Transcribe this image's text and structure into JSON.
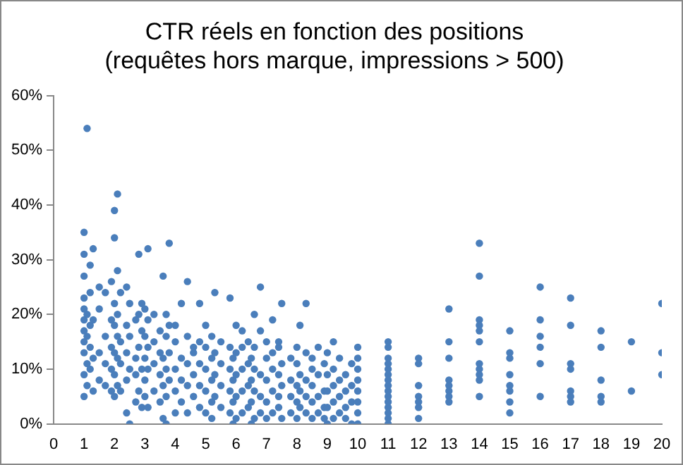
{
  "chart_data": {
    "type": "scatter",
    "title": "CTR réels en fonction des positions\n(requêtes hors marque, impressions > 500)",
    "marker": "circle",
    "xlim": [
      0,
      20
    ],
    "xticks": [
      0,
      1,
      2,
      3,
      4,
      5,
      6,
      7,
      8,
      9,
      10,
      11,
      12,
      13,
      14,
      15,
      16,
      17,
      18,
      19,
      20
    ],
    "ylim": [
      0,
      60
    ],
    "yticks": [
      {
        "value": 0,
        "label": "0%"
      },
      {
        "value": 10,
        "label": "10%"
      },
      {
        "value": 20,
        "label": "20%"
      },
      {
        "value": 30,
        "label": "30%"
      },
      {
        "value": 40,
        "label": "40%"
      },
      {
        "value": 50,
        "label": "50%"
      },
      {
        "value": 60,
        "label": "60%"
      }
    ],
    "series": [
      {
        "color": "#4a7ebb",
        "x": [
          1,
          1,
          1,
          1,
          1,
          1,
          1,
          1,
          1,
          1,
          1,
          1.1,
          1.1,
          1.1,
          1.1,
          1.1,
          1.2,
          1.2,
          1.2,
          1.2,
          1.2,
          1.3,
          1.3,
          1.3,
          1.3,
          1.5,
          1.5,
          1.5,
          1.5,
          1.7,
          1.7,
          1.7,
          1.7,
          1.9,
          1.9,
          1.9,
          1.9,
          1.9,
          2,
          2,
          2,
          2,
          2,
          2,
          2,
          2.1,
          2.1,
          2.1,
          2.1,
          2.1,
          2.1,
          2.2,
          2.2,
          2.2,
          2.2,
          2.4,
          2.4,
          2.4,
          2.4,
          2.4,
          2.5,
          2.5,
          2.5,
          2.5,
          2.7,
          2.7,
          2.7,
          2.7,
          2.8,
          2.8,
          2.8,
          2.8,
          2.9,
          2.9,
          2.9,
          2.9,
          3,
          3,
          3,
          3,
          3,
          3.1,
          3.1,
          3.1,
          3.1,
          3.1,
          3.3,
          3.3,
          3.3,
          3.3,
          3.5,
          3.5,
          3.5,
          3.5,
          3.6,
          3.6,
          3.6,
          3.6,
          3.7,
          3.7,
          3.7,
          3.7,
          3.7,
          3.8,
          3.8,
          3.8,
          3.8,
          4,
          4,
          4,
          4,
          4,
          4.2,
          4.2,
          4.2,
          4.2,
          4.4,
          4.4,
          4.4,
          4.4,
          4.4,
          4.6,
          4.6,
          4.6,
          4.6,
          4.8,
          4.8,
          4.8,
          4.8,
          4.8,
          5,
          5,
          5,
          5,
          5,
          5.2,
          5.2,
          5.2,
          5.2,
          5.2,
          5.3,
          5.3,
          5.3,
          5.3,
          5.5,
          5.5,
          5.5,
          5.5,
          5.8,
          5.8,
          5.8,
          5.8,
          5.8,
          5.9,
          5.9,
          5.9,
          5.9,
          6,
          6,
          6,
          6,
          6,
          6.2,
          6.2,
          6.2,
          6.2,
          6.2,
          6.4,
          6.4,
          6.4,
          6.4,
          6.5,
          6.5,
          6.5,
          6.5,
          6.6,
          6.6,
          6.6,
          6.6,
          6.6,
          6.8,
          6.8,
          6.8,
          6.8,
          6.8,
          7,
          7,
          7,
          7,
          7,
          7.2,
          7.2,
          7.2,
          7.2,
          7.2,
          7.4,
          7.4,
          7.4,
          7.4,
          7.4,
          7.5,
          7.5,
          7.5,
          7.5,
          7.8,
          7.8,
          7.8,
          7.8,
          8,
          8,
          8,
          8,
          8,
          8.1,
          8.1,
          8.1,
          8.1,
          8.3,
          8.3,
          8.3,
          8.3,
          8.3,
          8.5,
          8.5,
          8.5,
          8.5,
          8.5,
          8.7,
          8.7,
          8.7,
          8.7,
          8.9,
          8.9,
          8.9,
          8.9,
          9,
          9,
          9,
          9,
          9,
          9.2,
          9.2,
          9.2,
          9.2,
          9.2,
          9.4,
          9.4,
          9.4,
          9.4,
          9.6,
          9.6,
          9.6,
          9.6,
          9.8,
          9.8,
          9.8,
          9.8,
          10,
          10,
          10,
          10,
          10,
          10,
          10,
          10,
          11,
          11,
          11,
          11,
          11,
          11,
          11,
          11,
          11,
          11,
          11,
          11,
          11,
          11,
          11,
          12,
          12,
          12,
          12,
          12,
          12,
          12,
          13,
          13,
          13,
          13,
          13,
          13,
          13,
          13,
          14,
          14,
          14,
          14,
          14,
          14,
          14,
          14,
          14,
          14,
          14,
          15,
          15,
          15,
          15,
          15,
          15,
          15,
          15,
          16,
          16,
          16,
          16,
          16,
          16,
          17,
          17,
          17,
          17,
          17,
          17,
          17,
          18,
          18,
          18,
          18,
          18,
          19,
          19,
          20,
          20,
          20
        ],
        "values": [
          5,
          9,
          13,
          15,
          17,
          19,
          21,
          23,
          27,
          31,
          35,
          54,
          7,
          11,
          16,
          20,
          29,
          10,
          14,
          18,
          24,
          32,
          6,
          12,
          19,
          8,
          13,
          21,
          25,
          7,
          11,
          16,
          24,
          6,
          10,
          14,
          19,
          26,
          5,
          9,
          13,
          18,
          22,
          34,
          39,
          42,
          7,
          12,
          16,
          20,
          28,
          6,
          11,
          15,
          24,
          2,
          8,
          13,
          18,
          25,
          0,
          10,
          16,
          22,
          4,
          9,
          12,
          19,
          31,
          6,
          14,
          20,
          3,
          10,
          17,
          22,
          5,
          8,
          12,
          16,
          21,
          32,
          3,
          10,
          14,
          19,
          6,
          11,
          15,
          20,
          4,
          9,
          13,
          17,
          27,
          1,
          7,
          12,
          0,
          5,
          10,
          16,
          20,
          33,
          8,
          13,
          18,
          2,
          6,
          10,
          15,
          18,
          4,
          8,
          12,
          22,
          26,
          2,
          7,
          11,
          16,
          5,
          9,
          13,
          14,
          3,
          7,
          11,
          22,
          15,
          2,
          6,
          10,
          14,
          18,
          1,
          4,
          8,
          12,
          16,
          24,
          5,
          9,
          13,
          3,
          7,
          11,
          15,
          23,
          2,
          6,
          10,
          14,
          0,
          4,
          8,
          12,
          1,
          5,
          9,
          13,
          18,
          2,
          6,
          10,
          14,
          17,
          3,
          7,
          11,
          15,
          0,
          4,
          8,
          12,
          20,
          1,
          6,
          10,
          14,
          25,
          2,
          5,
          9,
          17,
          1,
          4,
          8,
          12,
          15,
          2,
          6,
          10,
          13,
          19,
          3,
          5,
          9,
          14,
          15,
          22,
          1,
          7,
          11,
          2,
          5,
          8,
          12,
          1,
          4,
          7,
          11,
          14,
          18,
          3,
          6,
          9,
          22,
          2,
          5,
          8,
          13,
          1,
          4,
          7,
          10,
          12,
          2,
          5,
          9,
          14,
          1,
          3,
          6,
          11,
          0,
          3,
          6,
          9,
          13,
          1,
          4,
          7,
          10,
          15,
          2,
          5,
          8,
          12,
          1,
          3,
          6,
          9,
          0,
          4,
          7,
          11,
          0,
          2,
          4,
          6,
          8,
          10,
          12,
          14,
          0,
          1,
          2,
          3,
          4,
          5,
          6,
          7,
          8,
          9,
          10,
          11,
          12,
          14,
          15,
          12,
          11,
          7,
          5,
          4,
          3,
          1,
          21,
          15,
          12,
          8,
          7,
          6,
          5,
          4,
          33,
          27,
          19,
          18,
          17,
          15,
          11,
          10,
          9,
          8,
          5,
          17,
          13,
          12,
          9,
          7,
          6,
          4,
          2,
          25,
          19,
          16,
          14,
          11,
          5,
          23,
          18,
          11,
          10,
          6,
          5,
          4,
          17,
          14,
          8,
          5,
          4,
          15,
          6,
          22,
          13,
          9
        ]
      }
    ]
  }
}
